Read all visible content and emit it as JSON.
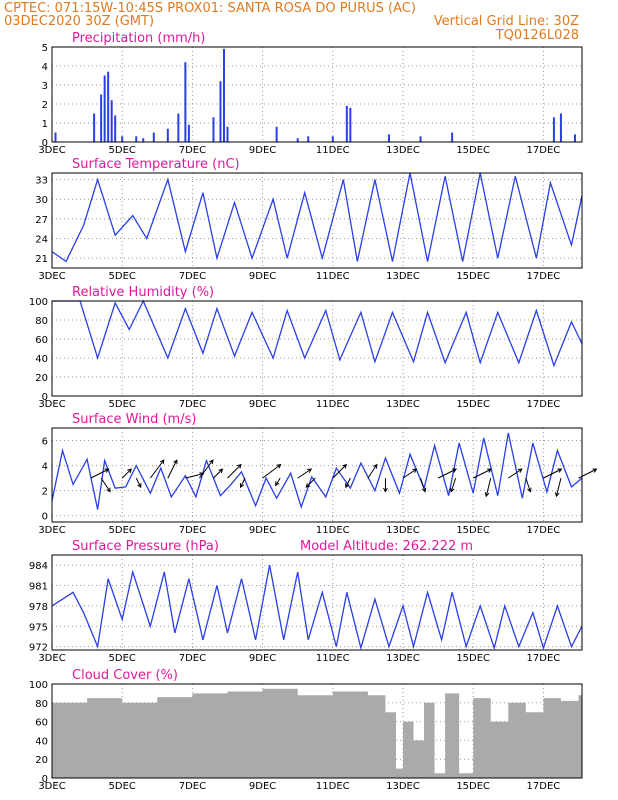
{
  "header": {
    "left_line1": "CPTEC:   071:15W-10:45S   PROX01: SANTA ROSA DO PURUS (AC)",
    "left_line2": "03DEC2020 30Z (GMT)",
    "right_line2": "Vertical Grid Line: 30Z",
    "right_line3": "TQ0126L028"
  },
  "x_axis": {
    "ticks": [
      "3DEC",
      "5DEC",
      "7DEC",
      "9DEC",
      "11DEC",
      "13DEC",
      "15DEC",
      "17DEC"
    ],
    "tick_days": [
      3,
      5,
      7,
      9,
      11,
      13,
      15,
      17
    ],
    "range_days": [
      3,
      18.1
    ]
  },
  "panels": [
    {
      "id": "precip",
      "title": "Precipitation (mm/h)",
      "yticks": [
        "0",
        "1",
        "2",
        "3",
        "4",
        "5"
      ],
      "yrange": [
        0,
        5
      ]
    },
    {
      "id": "temp",
      "title": "Surface Temperature (nC)",
      "yticks": [
        "21",
        "24",
        "27",
        "30",
        "33"
      ],
      "yrange": [
        19.5,
        34
      ]
    },
    {
      "id": "rh",
      "title": "Relative Humidity (%)",
      "yticks": [
        "0",
        "20",
        "40",
        "60",
        "80",
        "100"
      ],
      "yrange": [
        0,
        100
      ]
    },
    {
      "id": "wind",
      "title": "Surface Wind (m/s)",
      "yticks": [
        "0",
        "2",
        "4",
        "6"
      ],
      "yrange": [
        -0.5,
        7
      ]
    },
    {
      "id": "press",
      "title": "Surface Pressure (hPa)",
      "extra": "Model Altitude: 262.222 m",
      "yticks": [
        "972",
        "975",
        "978",
        "981",
        "984"
      ],
      "yrange": [
        971.5,
        985.5
      ]
    },
    {
      "id": "cloud",
      "title": "Cloud Cover (%)",
      "yticks": [
        "0",
        "20",
        "40",
        "60",
        "80",
        "100"
      ],
      "yrange": [
        0,
        100
      ]
    }
  ],
  "chart_data": [
    {
      "type": "bar",
      "title": "Precipitation (mm/h)",
      "ylim": [
        0,
        5
      ],
      "x": [
        3.1,
        4.2,
        4.4,
        4.5,
        4.6,
        4.7,
        4.8,
        5.0,
        5.4,
        5.6,
        5.9,
        6.3,
        6.6,
        6.8,
        6.9,
        7.6,
        7.8,
        7.9,
        8.0,
        9.4,
        10.0,
        10.3,
        11.0,
        11.4,
        11.5,
        12.6,
        13.5,
        14.4,
        17.3,
        17.5,
        17.9
      ],
      "values": [
        0.5,
        1.5,
        2.5,
        3.5,
        3.7,
        2.2,
        1.4,
        0.3,
        0.3,
        0.2,
        0.5,
        0.7,
        1.5,
        4.2,
        0.9,
        1.3,
        3.2,
        4.9,
        0.8,
        0.8,
        0.2,
        0.3,
        0.3,
        1.9,
        1.8,
        0.4,
        0.3,
        0.5,
        1.3,
        1.5,
        0.4
      ]
    },
    {
      "type": "line",
      "title": "Surface Temperature (nC)",
      "ylim": [
        19.5,
        34
      ],
      "x": [
        3.0,
        3.4,
        3.9,
        4.3,
        4.8,
        5.3,
        5.7,
        6.3,
        6.8,
        7.3,
        7.7,
        8.2,
        8.7,
        9.3,
        9.7,
        10.2,
        10.7,
        11.3,
        11.7,
        12.2,
        12.7,
        13.2,
        13.7,
        14.2,
        14.7,
        15.2,
        15.7,
        16.2,
        16.8,
        17.2,
        17.8,
        18.1
      ],
      "values": [
        22,
        20.5,
        26,
        33,
        24.5,
        27.5,
        24,
        33,
        22,
        31,
        21,
        29.5,
        21,
        30,
        21,
        31,
        21,
        33,
        20.5,
        33,
        20.5,
        34,
        20.5,
        33.5,
        20.5,
        34,
        21,
        33.5,
        21,
        32.5,
        23,
        30.5
      ]
    },
    {
      "type": "line",
      "title": "Relative Humidity (%)",
      "ylim": [
        0,
        100
      ],
      "x": [
        3.0,
        3.8,
        4.3,
        4.8,
        5.2,
        5.6,
        6.3,
        6.8,
        7.3,
        7.7,
        8.2,
        8.7,
        9.3,
        9.7,
        10.2,
        10.8,
        11.2,
        11.8,
        12.2,
        12.7,
        13.3,
        13.7,
        14.2,
        14.8,
        15.2,
        15.7,
        16.3,
        16.8,
        17.3,
        17.8,
        18.1
      ],
      "values": [
        100,
        100,
        40,
        98,
        70,
        100,
        40,
        92,
        45,
        92,
        42,
        88,
        40,
        90,
        40,
        90,
        38,
        88,
        36,
        88,
        36,
        88,
        35,
        88,
        35,
        88,
        35,
        90,
        32,
        78,
        55
      ]
    },
    {
      "type": "line",
      "title": "Surface Wind (m/s)",
      "ylim": [
        -0.5,
        7
      ],
      "x": [
        3.0,
        3.3,
        3.6,
        4.0,
        4.3,
        4.5,
        4.8,
        5.1,
        5.4,
        5.8,
        6.1,
        6.4,
        6.8,
        7.1,
        7.4,
        7.8,
        8.1,
        8.4,
        8.8,
        9.1,
        9.4,
        9.8,
        10.1,
        10.4,
        10.8,
        11.1,
        11.5,
        11.8,
        12.2,
        12.5,
        12.9,
        13.2,
        13.6,
        13.9,
        14.3,
        14.6,
        15.0,
        15.3,
        15.7,
        16.0,
        16.4,
        16.7,
        17.1,
        17.4,
        17.8,
        18.1
      ],
      "values": [
        1.2,
        5.2,
        2.5,
        4.5,
        0.5,
        4.4,
        2.2,
        2.3,
        4.0,
        1.8,
        3.8,
        1.5,
        3.2,
        1.5,
        4.4,
        1.6,
        2.5,
        3.5,
        0.8,
        3.0,
        1.4,
        3.4,
        0.7,
        3.1,
        1.5,
        3.8,
        2.2,
        4.2,
        2.0,
        4.6,
        1.8,
        4.9,
        2.2,
        5.6,
        1.6,
        5.8,
        1.8,
        6.2,
        1.6,
        6.6,
        1.4,
        5.8,
        1.9,
        5.2,
        2.3,
        3.0
      ],
      "arrows": {
        "x": [
          4.1,
          4.4,
          5.0,
          5.4,
          5.8,
          6.3,
          6.8,
          7.2,
          7.6,
          8.0,
          8.5,
          9.0,
          9.5,
          10.0,
          10.5,
          11.0,
          11.5,
          12.0,
          12.5,
          13.0,
          13.5,
          14.0,
          14.5,
          15.0,
          15.5,
          16.0,
          16.5,
          17.0,
          17.5,
          18.0
        ],
        "u": [
          2,
          1,
          1,
          0.5,
          1.5,
          1,
          2,
          1.5,
          1,
          1.5,
          -0.5,
          2,
          -0.5,
          1.5,
          -1,
          1.5,
          -0.5,
          1,
          0,
          1.5,
          0.5,
          2,
          -0.5,
          2,
          -0.5,
          1.5,
          0.5,
          2,
          -0.5,
          2
        ],
        "v": [
          1,
          -1.5,
          1,
          -1,
          2,
          2,
          0.5,
          2,
          1,
          1.5,
          -1,
          1.5,
          -0.8,
          1,
          -1,
          1.5,
          -1,
          1.5,
          -1.5,
          1,
          -1.5,
          1,
          -1.5,
          1,
          -2,
          1,
          -1.5,
          1,
          -2,
          1
        ]
      }
    },
    {
      "type": "line",
      "title": "Surface Pressure (hPa)",
      "ylim": [
        971.5,
        985.5
      ],
      "x": [
        3.0,
        3.6,
        3.9,
        4.3,
        4.6,
        5.0,
        5.3,
        5.8,
        6.2,
        6.5,
        6.9,
        7.3,
        7.7,
        8.0,
        8.4,
        8.8,
        9.2,
        9.6,
        10.0,
        10.3,
        10.7,
        11.1,
        11.4,
        11.8,
        12.2,
        12.6,
        13.0,
        13.3,
        13.7,
        14.1,
        14.4,
        14.8,
        15.2,
        15.6,
        15.9,
        16.3,
        16.7,
        17.0,
        17.4,
        17.8,
        18.1
      ],
      "values": [
        978,
        980,
        977,
        972,
        982,
        976,
        983,
        975,
        983,
        974,
        982,
        973,
        981,
        974,
        982,
        973,
        984,
        973,
        983,
        973,
        980,
        972,
        980,
        971.8,
        979,
        972,
        978,
        972,
        980,
        973,
        980,
        972,
        978,
        971.8,
        978,
        972,
        977,
        971.8,
        978,
        972,
        975
      ]
    },
    {
      "type": "bar",
      "title": "Cloud Cover (%)",
      "ylim": [
        0,
        100
      ],
      "x": [
        3.0,
        4.0,
        5.0,
        6.0,
        7.0,
        8.0,
        9.0,
        10.0,
        11.0,
        12.0,
        12.5,
        12.8,
        13.0,
        13.3,
        13.6,
        13.9,
        14.2,
        14.6,
        15.0,
        15.5,
        16.0,
        16.5,
        17.0,
        17.5,
        18.0
      ],
      "values": [
        80,
        85,
        80,
        86,
        90,
        92,
        95,
        88,
        92,
        88,
        70,
        10,
        60,
        40,
        80,
        5,
        90,
        5,
        85,
        60,
        80,
        70,
        85,
        82,
        88
      ]
    }
  ]
}
